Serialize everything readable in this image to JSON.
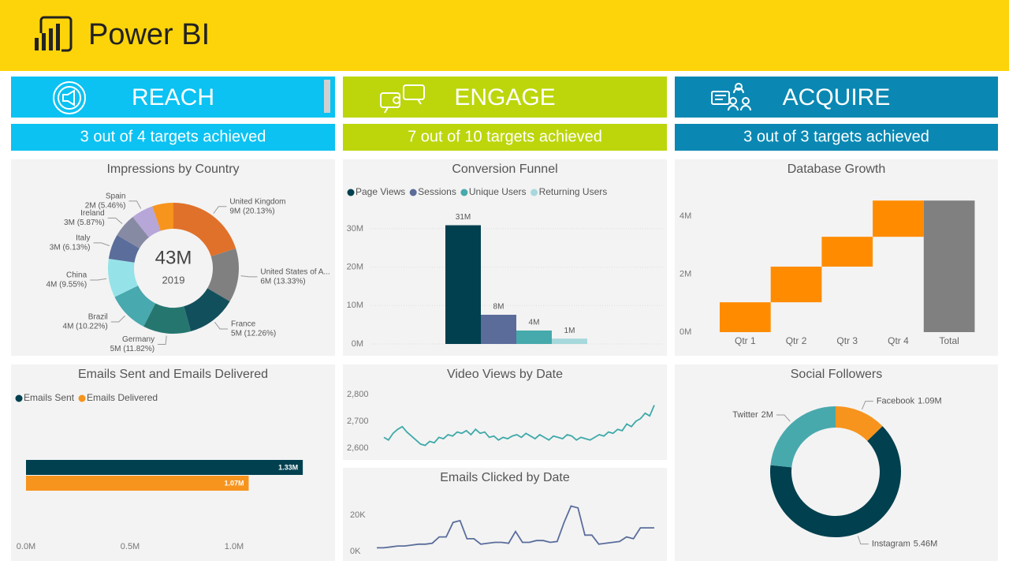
{
  "header": {
    "title": "Power BI"
  },
  "sections": [
    {
      "title": "REACH",
      "subtitle": "3 out of 4 targets achieved",
      "color": "#0bc2f2"
    },
    {
      "title": "ENGAGE",
      "subtitle": "7 out of 10 targets achieved",
      "color": "#bcd60b"
    },
    {
      "title": "ACQUIRE",
      "subtitle": "3 out of 3 targets achieved",
      "color": "#0a88b3"
    }
  ],
  "chart_data": [
    {
      "type": "donut",
      "title": "Impressions by Country",
      "center_label": "43M",
      "center_sublabel": "2019",
      "categories": [
        "United Kingdom",
        "United States of A...",
        "France",
        "Germany",
        "Brazil",
        "China",
        "Italy",
        "Ireland",
        "Spain",
        null
      ],
      "values": [
        20.13,
        13.33,
        12.26,
        11.82,
        10.22,
        9.55,
        6.13,
        5.87,
        5.46,
        5.23
      ],
      "value_labels": [
        "9M (20.13%)",
        "6M (13.33%)",
        "5M (12.26%)",
        "5M (11.82%)",
        "4M (10.22%)",
        "4M (9.55%)",
        "3M (6.13%)",
        "3M (5.87%)",
        "2M (5.46%)",
        null
      ],
      "colors": [
        "#e0712a",
        "#808080",
        "#124f5c",
        "#267670",
        "#48a9af",
        "#95e3e8",
        "#5a6d9b",
        "#878aa3",
        "#b7a6d8",
        "#f7941d"
      ]
    },
    {
      "type": "hbar",
      "title": "Emails Sent and Emails Delivered",
      "series": [
        {
          "name": "Emails Sent",
          "color": "#00404f",
          "values": [
            1.33
          ],
          "value_labels": [
            "1.33M"
          ]
        },
        {
          "name": "Emails Delivered",
          "color": "#f7941d",
          "values": [
            1.07
          ],
          "value_labels": [
            "1.07M"
          ]
        }
      ],
      "xlim": [
        0,
        1.45
      ],
      "xticks": [
        {
          "value": 0,
          "label": "0.0M"
        },
        {
          "value": 0.5,
          "label": "0.5M"
        },
        {
          "value": 1,
          "label": "1.0M"
        }
      ]
    },
    {
      "type": "bar",
      "title": "Conversion Funnel",
      "series": [
        {
          "name": "Page Views",
          "color": "#00404f",
          "values": [
            30.9
          ],
          "value_labels": [
            "31M"
          ]
        },
        {
          "name": "Sessions",
          "color": "#5b6b9a",
          "values": [
            7.6
          ],
          "value_labels": [
            "8M"
          ]
        },
        {
          "name": "Unique Users",
          "color": "#46a9ac",
          "values": [
            3.5
          ],
          "value_labels": [
            "4M"
          ]
        },
        {
          "name": "Returning Users",
          "color": "#a7d8dc",
          "values": [
            1.4
          ],
          "value_labels": [
            "1M"
          ]
        }
      ],
      "ylim": [
        0,
        33
      ],
      "yticks": [
        {
          "value": 0,
          "label": "0M"
        },
        {
          "value": 10,
          "label": "10M"
        },
        {
          "value": 20,
          "label": "20M"
        },
        {
          "value": 30,
          "label": "30M"
        }
      ],
      "grid": true
    },
    {
      "type": "waterfall",
      "title": "Database Growth",
      "categories": [
        "Qtr 1",
        "Qtr 2",
        "Qtr 3",
        "Qtr 4",
        "Total"
      ],
      "values": [
        1.03,
        1.23,
        1.03,
        1.25,
        4.54
      ],
      "color": "#ff8c00",
      "total_color": "#808080",
      "ylim": [
        0,
        4.9
      ],
      "yticks": [
        {
          "value": 0,
          "label": "0M"
        },
        {
          "value": 2,
          "label": "2M"
        },
        {
          "value": 4,
          "label": "4M"
        }
      ]
    },
    {
      "type": "line",
      "title": "Video Views by Date",
      "color": "#3fa9a9",
      "values": [
        2640,
        2630,
        2655,
        2670,
        2680,
        2660,
        2645,
        2630,
        2615,
        2610,
        2625,
        2620,
        2640,
        2635,
        2650,
        2645,
        2660,
        2655,
        2665,
        2650,
        2670,
        2655,
        2660,
        2640,
        2645,
        2630,
        2640,
        2635,
        2645,
        2650,
        2640,
        2655,
        2645,
        2635,
        2650,
        2640,
        2630,
        2645,
        2640,
        2635,
        2650,
        2645,
        2630,
        2640,
        2635,
        2630,
        2640,
        2650,
        2645,
        2660,
        2655,
        2670,
        2665,
        2690,
        2680,
        2700,
        2710,
        2730,
        2720,
        2760
      ],
      "ylim": [
        2580,
        2820
      ],
      "yticks": [
        {
          "value": 2600,
          "label": "2,600"
        },
        {
          "value": 2700,
          "label": "2,700"
        },
        {
          "value": 2800,
          "label": "2,800"
        }
      ]
    },
    {
      "type": "line",
      "title": "Emails Clicked by Date",
      "color": "#5a6d9b",
      "values": [
        2000,
        2000,
        2500,
        3000,
        3000,
        3500,
        4000,
        4000,
        4500,
        8000,
        8000,
        16000,
        17000,
        7000,
        7000,
        4000,
        4500,
        5000,
        5000,
        4500,
        11000,
        5000,
        5000,
        6000,
        6000,
        5000,
        5500,
        16000,
        25000,
        24000,
        9000,
        9000,
        4000,
        4500,
        5000,
        5500,
        8000,
        7000,
        13000,
        13000,
        13000
      ],
      "ylim": [
        0,
        32000
      ],
      "yticks": [
        {
          "value": 0,
          "label": "0K"
        },
        {
          "value": 20000,
          "label": "20K"
        }
      ]
    },
    {
      "type": "donut",
      "title": "Social Followers",
      "categories": [
        "Facebook",
        "Instagram",
        "Twitter"
      ],
      "values": [
        1.09,
        5.46,
        2
      ],
      "value_labels": [
        "1.09M",
        "5.46M",
        "2M"
      ],
      "colors": [
        "#f7941d",
        "#00404f",
        "#48a9ad"
      ]
    }
  ]
}
